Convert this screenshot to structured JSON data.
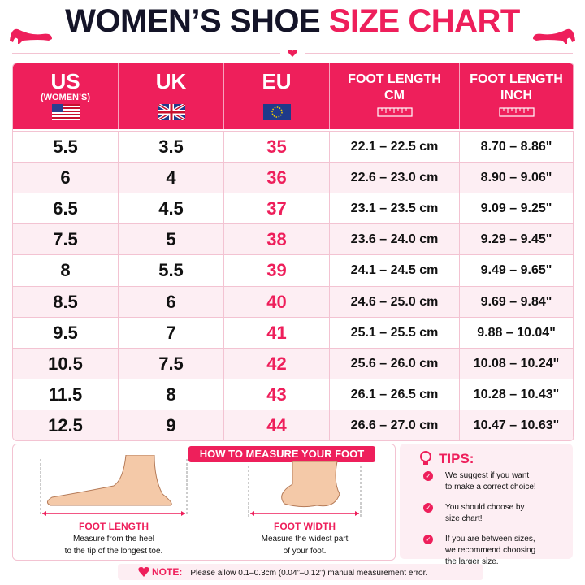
{
  "header": {
    "title_dark": "WOMEN’S SHOE",
    "title_accent": "SIZE CHART"
  },
  "table": {
    "columns": [
      {
        "title": "US",
        "subtitle": "(WOMEN’S)"
      },
      {
        "title": "UK"
      },
      {
        "title": "EU"
      },
      {
        "title": "FOOT LENGTH",
        "subtitle": "CM"
      },
      {
        "title": "FOOT LENGTH",
        "subtitle": "INCH"
      }
    ],
    "rows": [
      [
        "5.5",
        "3.5",
        "35",
        "22.1 – 22.5 cm",
        "8.70 – 8.86\""
      ],
      [
        "6",
        "4",
        "36",
        "22.6 – 23.0 cm",
        "8.90 – 9.06\""
      ],
      [
        "6.5",
        "4.5",
        "37",
        "23.1 – 23.5 cm",
        "9.09 – 9.25\""
      ],
      [
        "7.5",
        "5",
        "38",
        "23.6 – 24.0 cm",
        "9.29 – 9.45\""
      ],
      [
        "8",
        "5.5",
        "39",
        "24.1 – 24.5 cm",
        "9.49 – 9.65\""
      ],
      [
        "8.5",
        "6",
        "40",
        "24.6 – 25.0 cm",
        "9.69 – 9.84\""
      ],
      [
        "9.5",
        "7",
        "41",
        "25.1 – 25.5 cm",
        "9.88 – 10.04\""
      ],
      [
        "10.5",
        "7.5",
        "42",
        "25.6 – 26.0 cm",
        "10.08 – 10.24\""
      ],
      [
        "11.5",
        "8",
        "43",
        "26.1 – 26.5 cm",
        "10.28 – 10.43\""
      ],
      [
        "12.5",
        "9",
        "44",
        "26.6 – 27.0 cm",
        "10.47 – 10.63\""
      ]
    ]
  },
  "measure": {
    "title": "HOW TO MEASURE YOUR FOOT",
    "length": {
      "label": "FOOT LENGTH",
      "lines": [
        "Measure from the heel",
        "to the tip of the longest toe."
      ]
    },
    "width": {
      "label": "FOOT WIDTH",
      "lines": [
        "Measure the widest part",
        "of your foot."
      ]
    }
  },
  "tips": {
    "title": "TIPS:",
    "items": [
      [
        "We suggest if you want",
        "to make a correct choice!"
      ],
      [
        "You should choose by",
        "size chart!"
      ],
      [
        "If you are between sizes,",
        "we recommend choosing",
        "the larger size."
      ]
    ]
  },
  "note": {
    "label": "NOTE:",
    "text": "Please allow 0.1–0.3cm (0.04”–0.12”) manual measurement error."
  }
}
